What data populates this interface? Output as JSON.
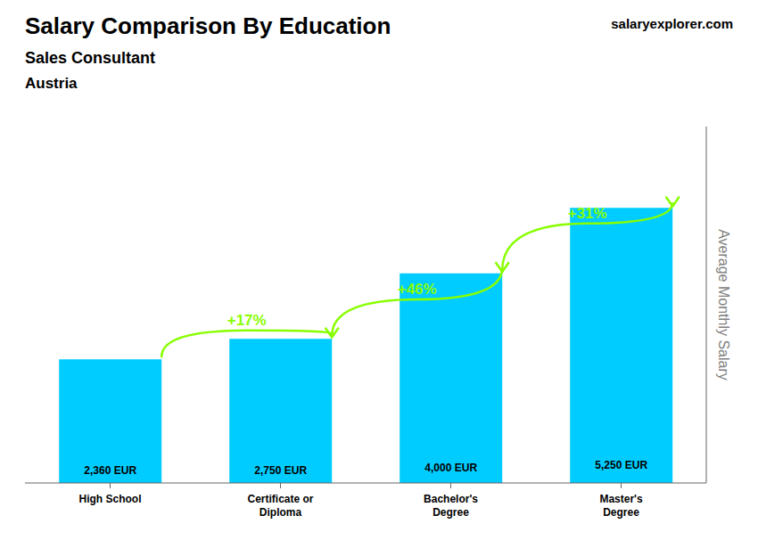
{
  "chart_data": {
    "type": "bar",
    "title": "Salary Comparison By Education",
    "subtitle": "Sales Consultant",
    "ylabel": "Average Monthly Salary",
    "categories": [
      "High School",
      "Certificate or\nDiploma",
      "Bachelor's\nDegree",
      "Master's\nDegree"
    ],
    "values": [
      2360,
      2750,
      4000,
      5250
    ],
    "value_labels": [
      "2,360 EUR",
      "2,750 EUR",
      "4,000 EUR",
      "5,250 EUR"
    ],
    "data_labels": true,
    "color": "#00CCFF",
    "ylim": [
      0,
      6800
    ],
    "grid": false,
    "tick_labels": "x",
    "annotations": [
      {
        "text": "Austria"
      },
      {
        "text": "salaryexplorer.com"
      },
      {
        "text": "+17%",
        "from": "High School",
        "to": "Certificate or\nDiploma",
        "color": "#88FF00"
      },
      {
        "text": "+46%",
        "from": "Certificate or\nDiploma",
        "to": "Bachelor's\nDegree",
        "color": "#88FF00"
      },
      {
        "text": "+31%",
        "from": "Bachelor's\nDegree",
        "to": "Master's\nDegree",
        "color": "#88FF00"
      }
    ]
  }
}
